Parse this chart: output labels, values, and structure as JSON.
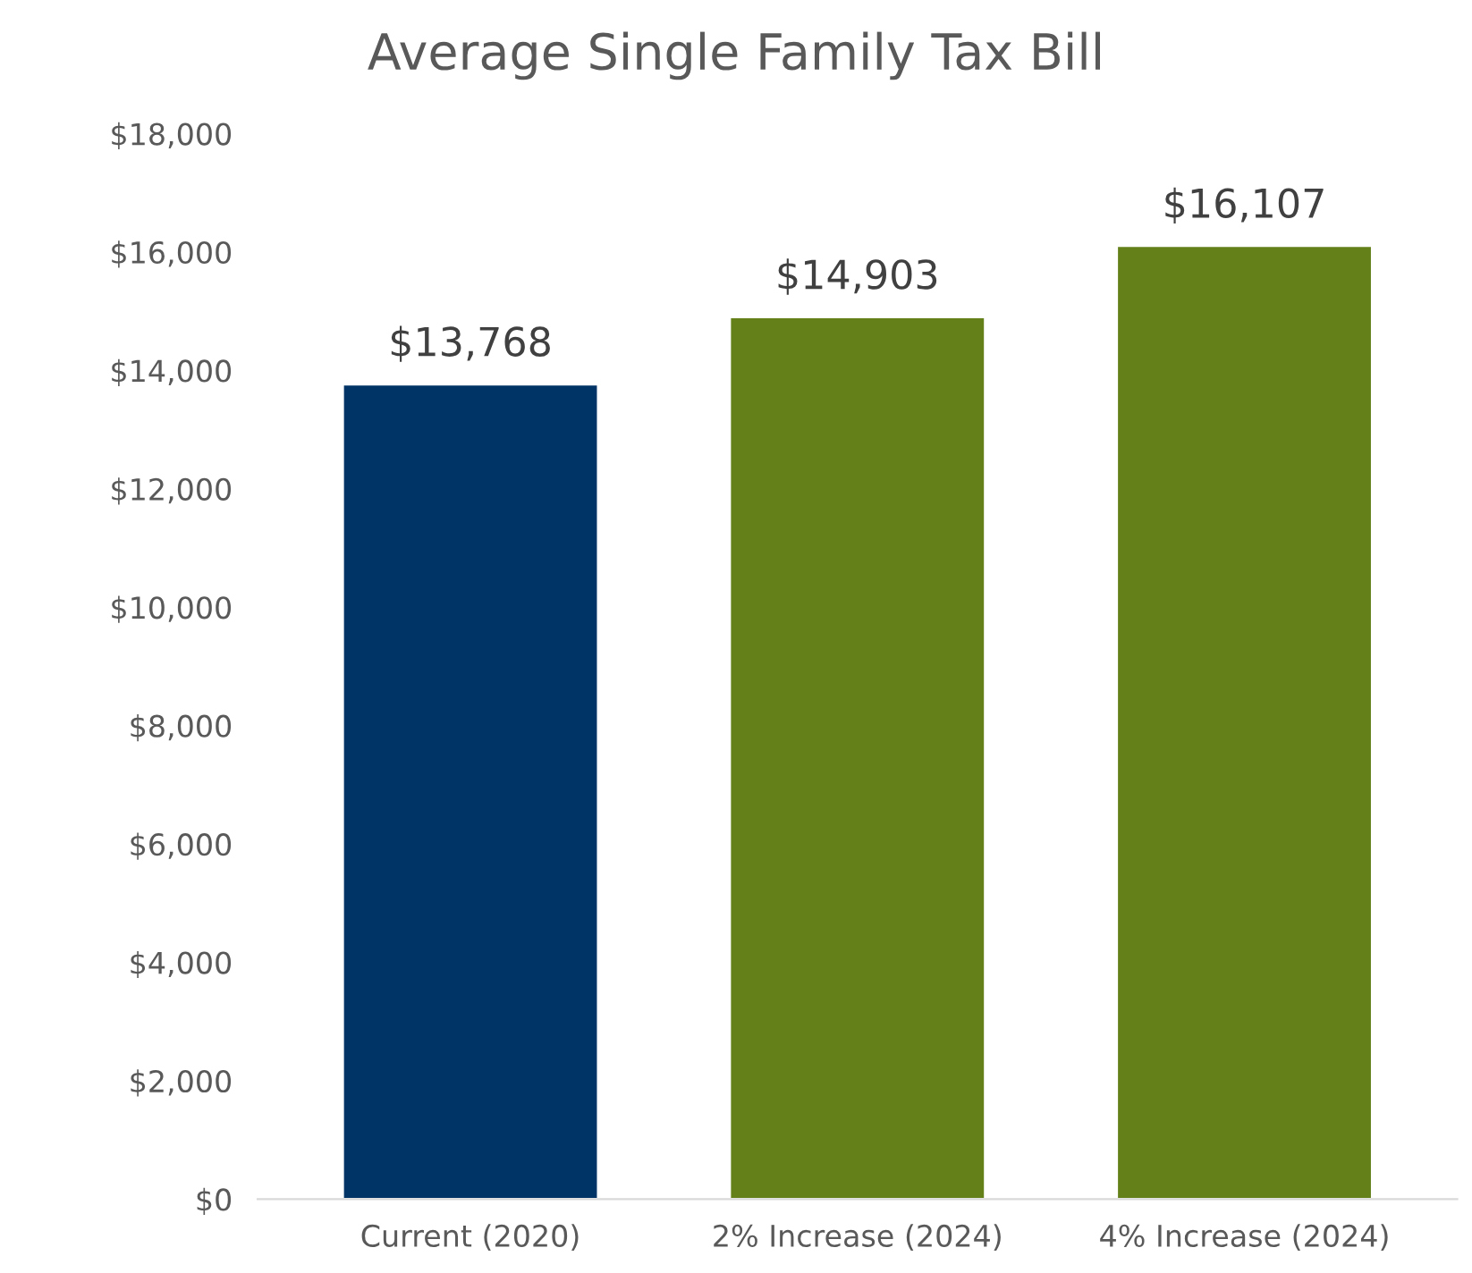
{
  "chart_data": {
    "type": "bar",
    "title": "Average Single Family Tax Bill",
    "categories": [
      "Current (2020)",
      "2% Increase (2024)",
      "4% Increase (2024)"
    ],
    "values": [
      13768,
      14903,
      16107
    ],
    "colors": [
      "#003366",
      "#638019",
      "#638019"
    ],
    "value_labels": [
      "$13,768",
      "$14,903",
      "$16,107"
    ],
    "ylim": [
      0,
      18000
    ],
    "yticks": [
      {
        "value": 0,
        "label": "$0"
      },
      {
        "value": 2000,
        "label": "$2,000"
      },
      {
        "value": 4000,
        "label": "$4,000"
      },
      {
        "value": 6000,
        "label": "$6,000"
      },
      {
        "value": 8000,
        "label": "$8,000"
      },
      {
        "value": 10000,
        "label": "$10,000"
      },
      {
        "value": 12000,
        "label": "$12,000"
      },
      {
        "value": 14000,
        "label": "$14,000"
      },
      {
        "value": 16000,
        "label": "$16,000"
      },
      {
        "value": 18000,
        "label": "$18,000"
      }
    ],
    "grid": false,
    "legend": false
  }
}
